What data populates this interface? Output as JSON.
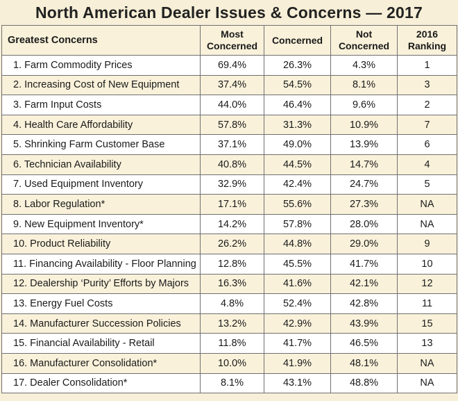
{
  "title": "North American Dealer Issues & Concerns — 2017",
  "chart_data": {
    "type": "table",
    "title": "North American Dealer Issues & Concerns — 2017",
    "columns": [
      {
        "line1": "Greatest Concerns",
        "line2": ""
      },
      {
        "line1": "Most",
        "line2": "Concerned"
      },
      {
        "line1": "Concerned",
        "line2": ""
      },
      {
        "line1": "Not",
        "line2": "Concerned"
      },
      {
        "line1": "2016",
        "line2": "Ranking"
      }
    ],
    "rows": [
      [
        "1. Farm Commodity Prices",
        "69.4%",
        "26.3%",
        "4.3%",
        "1"
      ],
      [
        "2. Increasing Cost of New Equipment",
        "37.4%",
        "54.5%",
        "8.1%",
        "3"
      ],
      [
        "3. Farm Input Costs",
        "44.0%",
        "46.4%",
        "9.6%",
        "2"
      ],
      [
        "4. Health Care Affordability",
        "57.8%",
        "31.3%",
        "10.9%",
        "7"
      ],
      [
        "5. Shrinking Farm Customer Base",
        "37.1%",
        "49.0%",
        "13.9%",
        "6"
      ],
      [
        "6. Technician Availability",
        "40.8%",
        "44.5%",
        "14.7%",
        "4"
      ],
      [
        "7. Used Equipment Inventory",
        "32.9%",
        "42.4%",
        "24.7%",
        "5"
      ],
      [
        "8. Labor Regulation*",
        "17.1%",
        "55.6%",
        "27.3%",
        "NA"
      ],
      [
        "9. New Equipment Inventory*",
        "14.2%",
        "57.8%",
        "28.0%",
        "NA"
      ],
      [
        "10. Product Reliability",
        "26.2%",
        "44.8%",
        "29.0%",
        "9"
      ],
      [
        "11. Financing Availability - Floor Planning",
        "12.8%",
        "45.5%",
        "41.7%",
        "10"
      ],
      [
        "12. Dealership ‘Purity’ Efforts by Majors",
        "16.3%",
        "41.6%",
        "42.1%",
        "12"
      ],
      [
        "13. Energy Fuel Costs",
        "4.8%",
        "52.4%",
        "42.8%",
        "11"
      ],
      [
        "14. Manufacturer Succession Policies",
        "13.2%",
        "42.9%",
        "43.9%",
        "15"
      ],
      [
        "15. Financial Availability - Retail",
        "11.8%",
        "41.7%",
        "46.5%",
        "13"
      ],
      [
        "16. Manufacturer Consolidation*",
        "10.0%",
        "41.9%",
        "48.1%",
        "NA"
      ],
      [
        "17. Dealer Consolidation*",
        "8.1%",
        "43.1%",
        "48.8%",
        "NA"
      ]
    ]
  }
}
